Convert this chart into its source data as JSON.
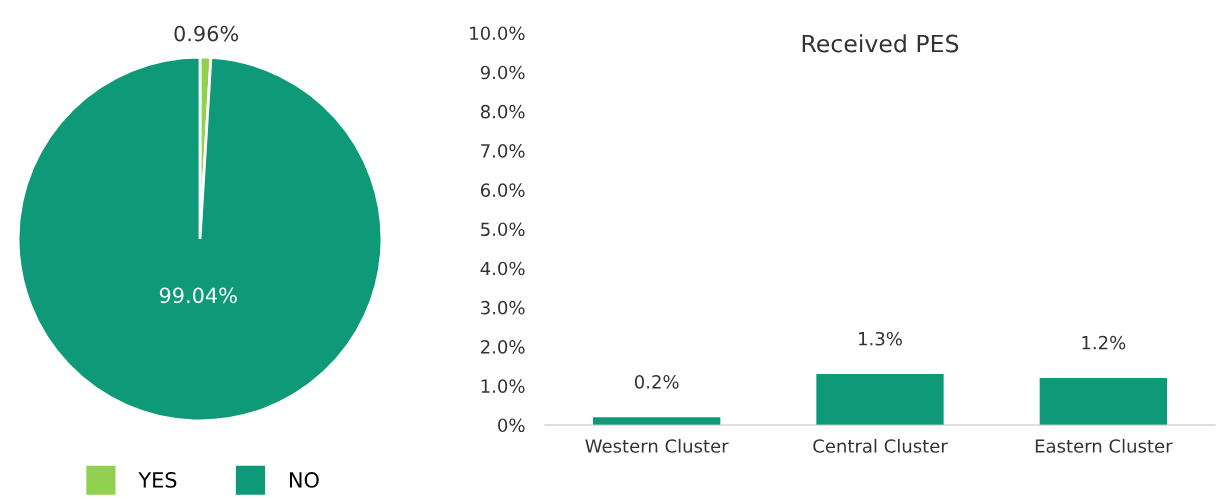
{
  "chart_data": [
    {
      "type": "pie",
      "categories": [
        "YES",
        "NO"
      ],
      "values": [
        0.96,
        99.04
      ],
      "colors": [
        "#92d050",
        "#0e9a78"
      ],
      "value_labels": [
        "0.96%",
        "99.04%"
      ],
      "legend": "bottom"
    },
    {
      "type": "bar",
      "title": "Received PES",
      "categories": [
        "Western Cluster",
        "Central Cluster",
        "Eastern Cluster"
      ],
      "values": [
        0.2,
        1.3,
        1.2
      ],
      "color": "#0e9a78",
      "value_labels": [
        "0.2%",
        "1.3%",
        "1.2%"
      ],
      "ylim": [
        0,
        10
      ],
      "yticks": [
        {
          "value": 0,
          "label": "0%"
        },
        {
          "value": 1,
          "label": "1.0%"
        },
        {
          "value": 2,
          "label": "2.0%"
        },
        {
          "value": 3,
          "label": "3.0%"
        },
        {
          "value": 4,
          "label": "4.0%"
        },
        {
          "value": 5,
          "label": "5.0%"
        },
        {
          "value": 6,
          "label": "6.0%"
        },
        {
          "value": 7,
          "label": "7.0%"
        },
        {
          "value": 8,
          "label": "8.0%"
        },
        {
          "value": 9,
          "label": "9.0%"
        },
        {
          "value": 10,
          "label": "10.0%"
        }
      ],
      "grid": false,
      "legend": false
    }
  ]
}
